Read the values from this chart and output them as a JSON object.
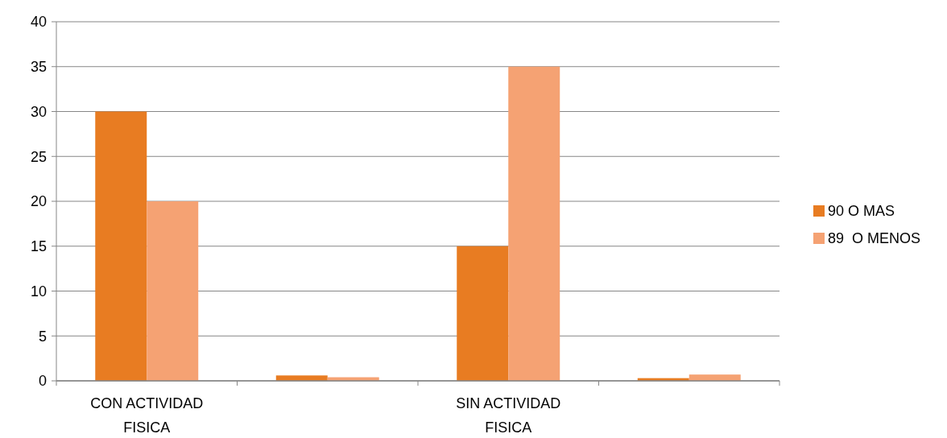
{
  "chart_data": {
    "type": "bar",
    "categories": [
      "CON ACTIVIDAD FISICA",
      null,
      "SIN ACTIVIDAD FISICA",
      null
    ],
    "series": [
      {
        "name": "90 O MAS",
        "color": "#e87c22",
        "values": [
          30,
          0.6,
          15,
          0.3
        ]
      },
      {
        "name": "89  O MENOS",
        "color": "#f5a273",
        "values": [
          20,
          0.4,
          35,
          0.7
        ]
      }
    ],
    "ylim": [
      0,
      40
    ],
    "yticks": [
      0,
      5,
      10,
      15,
      20,
      25,
      30,
      35,
      40
    ],
    "grid": "y",
    "legend": "right"
  }
}
